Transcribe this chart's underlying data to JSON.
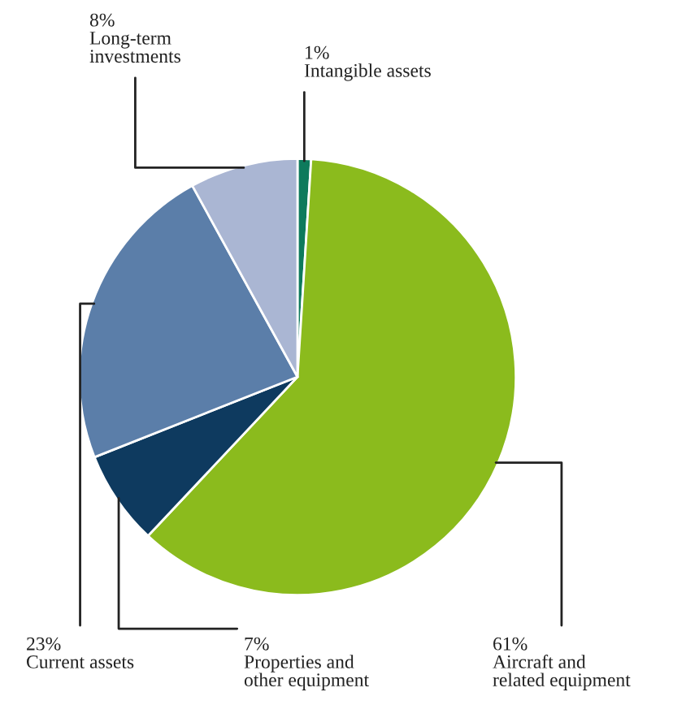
{
  "chart_data": {
    "type": "pie",
    "categories": [
      "Intangible assets",
      "Aircraft and\nrelated equipment",
      "Properties and\nother equipment",
      "Current assets",
      "Long-term\ninvestments"
    ],
    "values": [
      1,
      61,
      7,
      23,
      8
    ],
    "value_labels": [
      "1%",
      "61%",
      "7%",
      "23%",
      "8%"
    ],
    "colors": [
      "#0e7a5c",
      "#8bbb1d",
      "#0e3a5f",
      "#5b7ea9",
      "#aab6d3"
    ],
    "legend": false
  }
}
